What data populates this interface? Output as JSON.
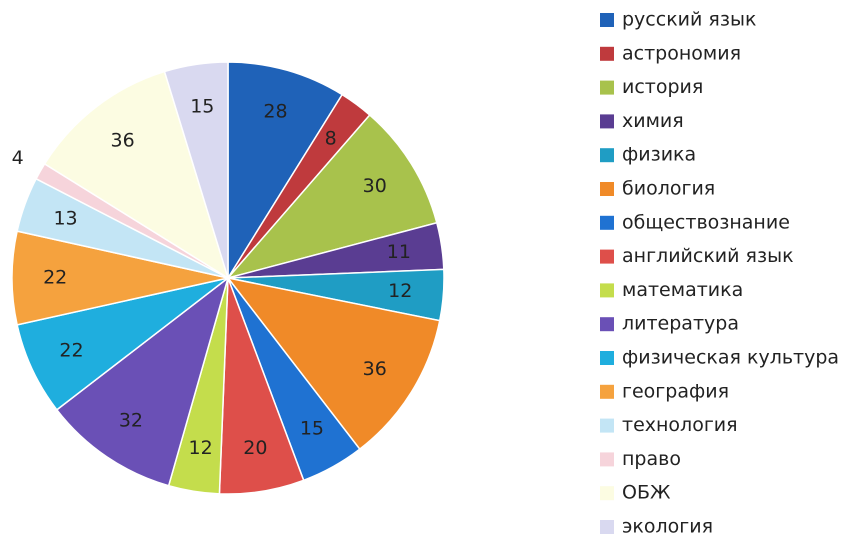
{
  "chart_data": {
    "type": "pie",
    "categories": [
      "русский язык",
      "астрономия",
      "история",
      "химия",
      "физика",
      "биология",
      "обществознание",
      "английский язык",
      "математика",
      "литература",
      "физическая культура",
      "география",
      "технология",
      "право",
      "ОБЖ",
      "экология"
    ],
    "values": [
      28,
      8,
      30,
      11,
      12,
      36,
      15,
      20,
      12,
      32,
      22,
      22,
      13,
      4,
      36,
      15
    ],
    "colors": [
      "#1f62b8",
      "#bf3a3d",
      "#a8c24c",
      "#5a3d92",
      "#1f9dc4",
      "#f08a28",
      "#1f72d2",
      "#de4f4a",
      "#c4dd4c",
      "#6a50b6",
      "#1faede",
      "#f5a23e",
      "#c3e5f5",
      "#f6d4db",
      "#fcfce2",
      "#d9d9f0"
    ],
    "legend": "right"
  }
}
